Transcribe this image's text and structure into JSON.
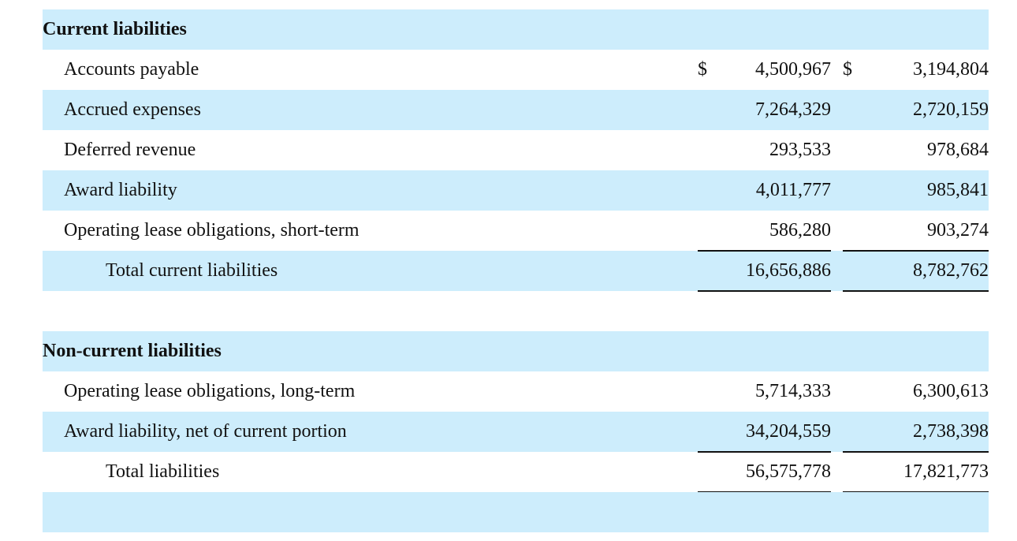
{
  "table": {
    "sections": [
      {
        "title": "Current liabilities",
        "rows": [
          {
            "label": "Accounts payable",
            "currency": [
              "$",
              "$"
            ],
            "values": [
              "4,500,967",
              "3,194,804"
            ]
          },
          {
            "label": "Accrued expenses",
            "values": [
              "7,264,329",
              "2,720,159"
            ]
          },
          {
            "label": "Deferred revenue",
            "values": [
              "293,533",
              "978,684"
            ]
          },
          {
            "label": "Award liability",
            "values": [
              "4,011,777",
              "985,841"
            ]
          },
          {
            "label": "Operating lease obligations, short-term",
            "values": [
              "586,280",
              "903,274"
            ]
          }
        ],
        "total": {
          "label": "Total current liabilities",
          "values": [
            "16,656,886",
            "8,782,762"
          ]
        }
      },
      {
        "title": "Non-current liabilities",
        "rows": [
          {
            "label": "Operating lease obligations, long-term",
            "values": [
              "5,714,333",
              "6,300,613"
            ]
          },
          {
            "label": "Award liability, net of current portion",
            "values": [
              "34,204,559",
              "2,738,398"
            ]
          }
        ],
        "total": {
          "label": "Total liabilities",
          "values": [
            "56,575,778",
            "17,821,773"
          ]
        }
      }
    ]
  }
}
